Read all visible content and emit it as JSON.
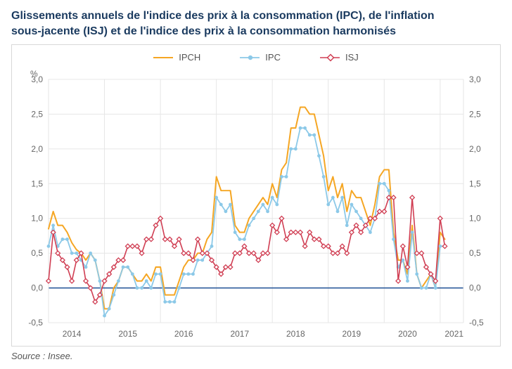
{
  "title_color": "#1a3a5f",
  "title_fontsize": 16,
  "title_l1": "Glissements annuels de l'indice des prix à la consommation (IPC), de l'inflation",
  "title_l2": "sous-jacente (ISJ) et de l'indice des prix à la consommation harmonisés",
  "source_label": "Source : Insee.",
  "chart": {
    "type": "line",
    "background_color": "#ffffff",
    "grid_color": "#e6e6e6",
    "border_color": "#d8d8d8",
    "zero_line_color": "#2e5c9c",
    "y_axis": {
      "unit_label": "%",
      "min": -0.5,
      "max": 3.0,
      "tick_step": 0.5,
      "ticks": [
        "-0,5",
        "0,0",
        "0,5",
        "1,0",
        "1,5",
        "2,0",
        "2,5",
        "3,0"
      ],
      "dual": true
    },
    "x_axis": {
      "start_index": 0,
      "end_index": 89,
      "year_labels": [
        "2014",
        "2015",
        "2016",
        "2017",
        "2018",
        "2019",
        "2020",
        "2021"
      ],
      "year_positions": [
        5,
        17,
        29,
        41,
        53,
        65,
        77,
        87
      ]
    },
    "legend": {
      "items": [
        {
          "key": "ipch",
          "label": "IPCH"
        },
        {
          "key": "ipc",
          "label": "IPC"
        },
        {
          "key": "isj",
          "label": "ISJ"
        }
      ],
      "fontsize": 13,
      "gap": 56
    },
    "series": {
      "ipch": {
        "color": "#f5a623",
        "line_width": 2,
        "marker": "none",
        "marker_size": 0,
        "values": [
          0.85,
          1.1,
          0.9,
          0.9,
          0.8,
          0.65,
          0.55,
          0.5,
          0.4,
          0.5,
          0.4,
          0.1,
          -0.3,
          -0.3,
          0.0,
          0.1,
          0.3,
          0.3,
          0.2,
          0.1,
          0.1,
          0.2,
          0.1,
          0.3,
          0.3,
          -0.1,
          -0.1,
          -0.1,
          0.1,
          0.3,
          0.4,
          0.4,
          0.5,
          0.5,
          0.7,
          0.8,
          1.6,
          1.4,
          1.4,
          1.4,
          0.9,
          0.8,
          0.8,
          1.0,
          1.1,
          1.2,
          1.3,
          1.2,
          1.5,
          1.3,
          1.7,
          1.8,
          2.3,
          2.3,
          2.6,
          2.6,
          2.5,
          2.5,
          2.2,
          1.9,
          1.4,
          1.6,
          1.3,
          1.5,
          1.1,
          1.4,
          1.3,
          1.3,
          1.1,
          0.9,
          1.2,
          1.6,
          1.7,
          1.7,
          0.8,
          0.4,
          0.4,
          0.2,
          0.9,
          0.2,
          0.0,
          0.1,
          0.2,
          0.0,
          0.8,
          0.7
        ]
      },
      "ipc": {
        "color": "#8cc9e8",
        "line_width": 1.8,
        "marker": "circle",
        "marker_size": 2.4,
        "values": [
          0.6,
          0.9,
          0.6,
          0.7,
          0.7,
          0.5,
          0.5,
          0.4,
          0.3,
          0.5,
          0.4,
          0.1,
          -0.4,
          -0.3,
          -0.1,
          0.1,
          0.3,
          0.3,
          0.2,
          0.0,
          0.0,
          0.1,
          0.0,
          0.2,
          0.2,
          -0.2,
          -0.2,
          -0.2,
          0.0,
          0.2,
          0.2,
          0.2,
          0.4,
          0.4,
          0.5,
          0.6,
          1.3,
          1.2,
          1.1,
          1.2,
          0.8,
          0.7,
          0.7,
          0.9,
          1.0,
          1.1,
          1.2,
          1.1,
          1.3,
          1.2,
          1.6,
          1.6,
          2.0,
          2.0,
          2.3,
          2.3,
          2.2,
          2.2,
          1.9,
          1.6,
          1.2,
          1.3,
          1.1,
          1.3,
          0.9,
          1.2,
          1.1,
          1.0,
          0.9,
          0.8,
          1.0,
          1.5,
          1.5,
          1.4,
          0.7,
          0.3,
          0.4,
          0.1,
          0.8,
          0.2,
          0.0,
          0.0,
          0.2,
          0.0,
          0.6,
          0.6
        ]
      },
      "isj": {
        "color": "#d03e53",
        "line_width": 1.6,
        "marker": "diamond",
        "marker_size": 3.2,
        "values": [
          0.1,
          0.8,
          0.5,
          0.4,
          0.3,
          0.1,
          0.4,
          0.5,
          0.1,
          0.0,
          -0.2,
          -0.1,
          0.1,
          0.2,
          0.3,
          0.4,
          0.4,
          0.6,
          0.6,
          0.6,
          0.5,
          0.7,
          0.7,
          0.9,
          1.0,
          0.7,
          0.7,
          0.6,
          0.7,
          0.5,
          0.5,
          0.4,
          0.7,
          0.5,
          0.5,
          0.4,
          0.3,
          0.2,
          0.3,
          0.3,
          0.5,
          0.5,
          0.6,
          0.5,
          0.5,
          0.4,
          0.5,
          0.5,
          0.9,
          0.8,
          1.0,
          0.7,
          0.8,
          0.8,
          0.8,
          0.6,
          0.8,
          0.7,
          0.7,
          0.6,
          0.6,
          0.5,
          0.5,
          0.6,
          0.5,
          0.8,
          0.9,
          0.8,
          0.9,
          1.0,
          1.0,
          1.1,
          1.1,
          1.3,
          1.3,
          0.1,
          0.6,
          0.3,
          1.3,
          0.5,
          0.5,
          0.3,
          0.2,
          0.1,
          1.0,
          0.6
        ]
      }
    }
  }
}
